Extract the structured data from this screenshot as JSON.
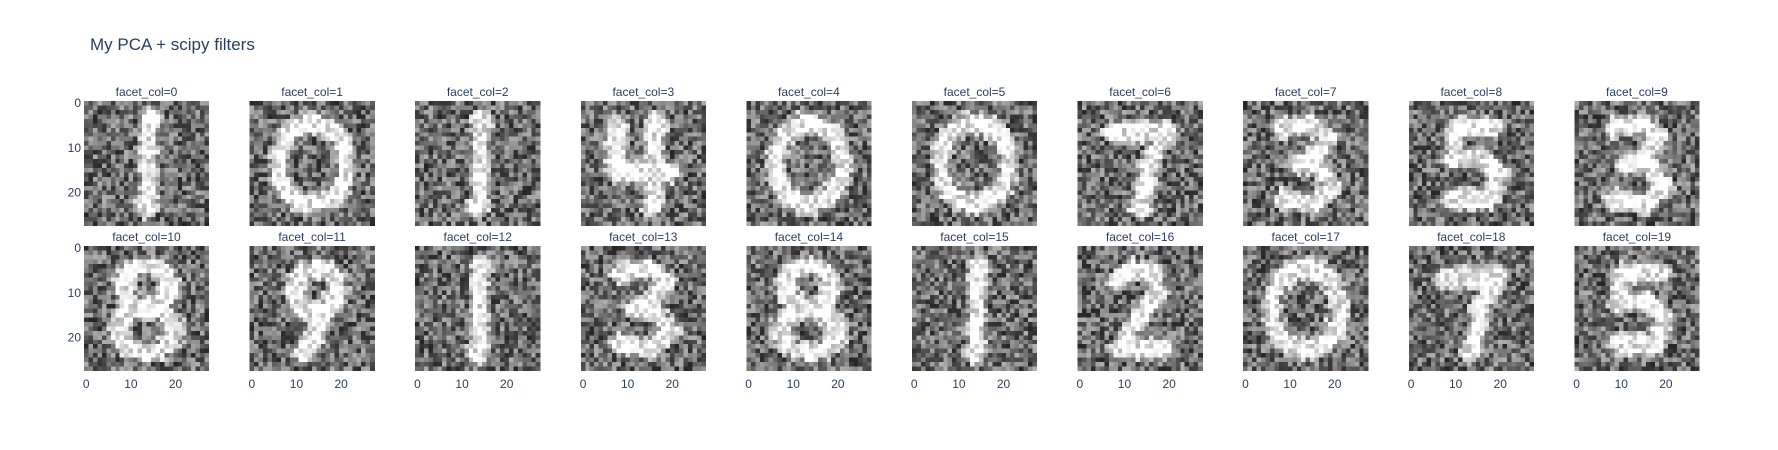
{
  "chart_data": {
    "type": "heatmap",
    "title": "My PCA + scipy filters",
    "colorscale": "gray",
    "image_size": [
      28,
      28
    ],
    "x_ticks": [
      "0",
      "10",
      "20"
    ],
    "y_ticks": [
      "0",
      "10",
      "20"
    ],
    "x_tick_values": [
      0,
      10,
      20
    ],
    "y_tick_values": [
      0,
      10,
      20
    ],
    "xlim": [
      -0.5,
      27.5
    ],
    "ylim": [
      27.5,
      -0.5
    ],
    "facets": [
      {
        "label": "facet_col=0",
        "digit": "1"
      },
      {
        "label": "facet_col=1",
        "digit": "0"
      },
      {
        "label": "facet_col=2",
        "digit": "1"
      },
      {
        "label": "facet_col=3",
        "digit": "4"
      },
      {
        "label": "facet_col=4",
        "digit": "0"
      },
      {
        "label": "facet_col=5",
        "digit": "0"
      },
      {
        "label": "facet_col=6",
        "digit": "7"
      },
      {
        "label": "facet_col=7",
        "digit": "3"
      },
      {
        "label": "facet_col=8",
        "digit": "5"
      },
      {
        "label": "facet_col=9",
        "digit": "3"
      },
      {
        "label": "facet_col=10",
        "digit": "8"
      },
      {
        "label": "facet_col=11",
        "digit": "9"
      },
      {
        "label": "facet_col=12",
        "digit": "1"
      },
      {
        "label": "facet_col=13",
        "digit": "3"
      },
      {
        "label": "facet_col=14",
        "digit": "8"
      },
      {
        "label": "facet_col=15",
        "digit": "1"
      },
      {
        "label": "facet_col=16",
        "digit": "2"
      },
      {
        "label": "facet_col=17",
        "digit": "0"
      },
      {
        "label": "facet_col=18",
        "digit": "7"
      },
      {
        "label": "facet_col=19",
        "digit": "5"
      }
    ]
  }
}
